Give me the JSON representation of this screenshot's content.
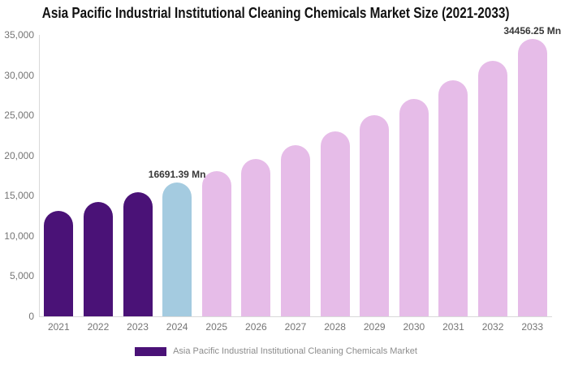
{
  "title": "Asia Pacific Industrial Institutional Cleaning Chemicals Market Size (2021-2033)",
  "colors": {
    "historical_bar": "#4A1277",
    "current_year_bar": "#A4CBE0",
    "forecast_bar": "#E6BCE8",
    "axis_line": "#D9D9D9",
    "tick_text": "#757575",
    "title_text": "#111111",
    "annotation_text": "#383838",
    "legend_text": "#8C8C8C"
  },
  "chart_data": {
    "type": "bar",
    "title": "Asia Pacific Industrial Institutional Cleaning Chemicals Market Size (2021-2033)",
    "xlabel": "",
    "ylabel": "",
    "categories": [
      "2021",
      "2022",
      "2023",
      "2024",
      "2025",
      "2026",
      "2027",
      "2028",
      "2029",
      "2030",
      "2031",
      "2032",
      "2033"
    ],
    "series": [
      {
        "name": "Asia Pacific Industrial Institutional Cleaning Chemicals Market",
        "values": [
          13109,
          14208,
          15400,
          16691.39,
          18091,
          19609,
          21253,
          23036,
          24968,
          27062,
          29331,
          31791,
          34456.25
        ]
      }
    ],
    "units": "Mn",
    "ylim": [
      0,
      35000
    ],
    "ytick_step": 5000,
    "ytick_labels": [
      "0",
      "5,000",
      "10,000",
      "15,000",
      "20,000",
      "25,000",
      "30,000",
      "35,000"
    ],
    "grid": "off",
    "legend_position": "bottom",
    "bar_colors": [
      "#4A1277",
      "#4A1277",
      "#4A1277",
      "#A4CBE0",
      "#E6BCE8",
      "#E6BCE8",
      "#E6BCE8",
      "#E6BCE8",
      "#E6BCE8",
      "#E6BCE8",
      "#E6BCE8",
      "#E6BCE8",
      "#E6BCE8"
    ],
    "annotations": [
      {
        "category": "2024",
        "text": "16691.39 Mn"
      },
      {
        "category": "2033",
        "text": "34456.25 Mn"
      }
    ]
  },
  "legend": {
    "label": "Asia Pacific Industrial Institutional Cleaning Chemicals Market",
    "swatch_color": "#4A1277"
  }
}
